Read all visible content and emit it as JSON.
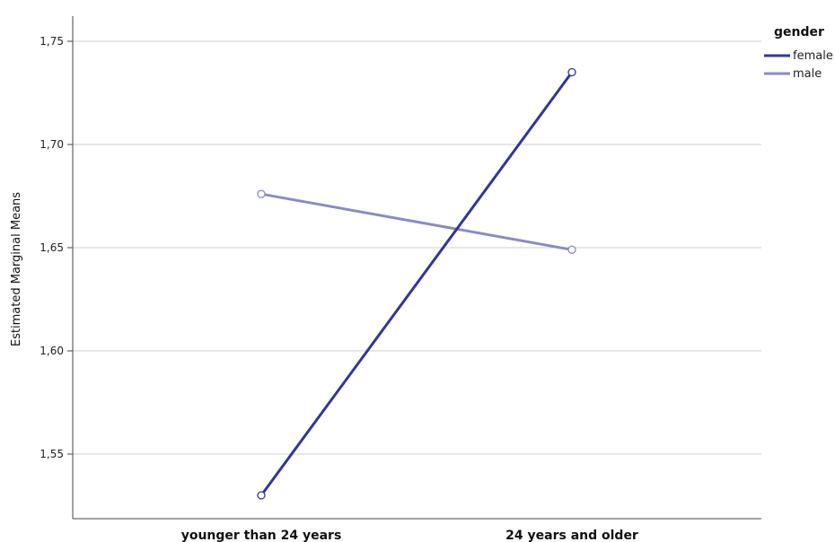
{
  "chart_data": {
    "type": "line",
    "categories": [
      "younger than 24 years",
      "24 years and older"
    ],
    "ylabel": "Estimated Marginal Means",
    "ylim": [
      1.525,
      1.762
    ],
    "yticks": [
      "1,55",
      "1,60",
      "1,65",
      "1,70",
      "1,75"
    ],
    "ytick_values": [
      1.55,
      1.6,
      1.65,
      1.7,
      1.75
    ],
    "grid": true,
    "legend": {
      "title": "gender",
      "position": "top-right"
    },
    "series": [
      {
        "name": "female",
        "values": [
          1.53,
          1.735
        ],
        "color": "#33359a"
      },
      {
        "name": "male",
        "values": [
          1.676,
          1.649
        ],
        "color": "#8a8bc4"
      }
    ]
  }
}
